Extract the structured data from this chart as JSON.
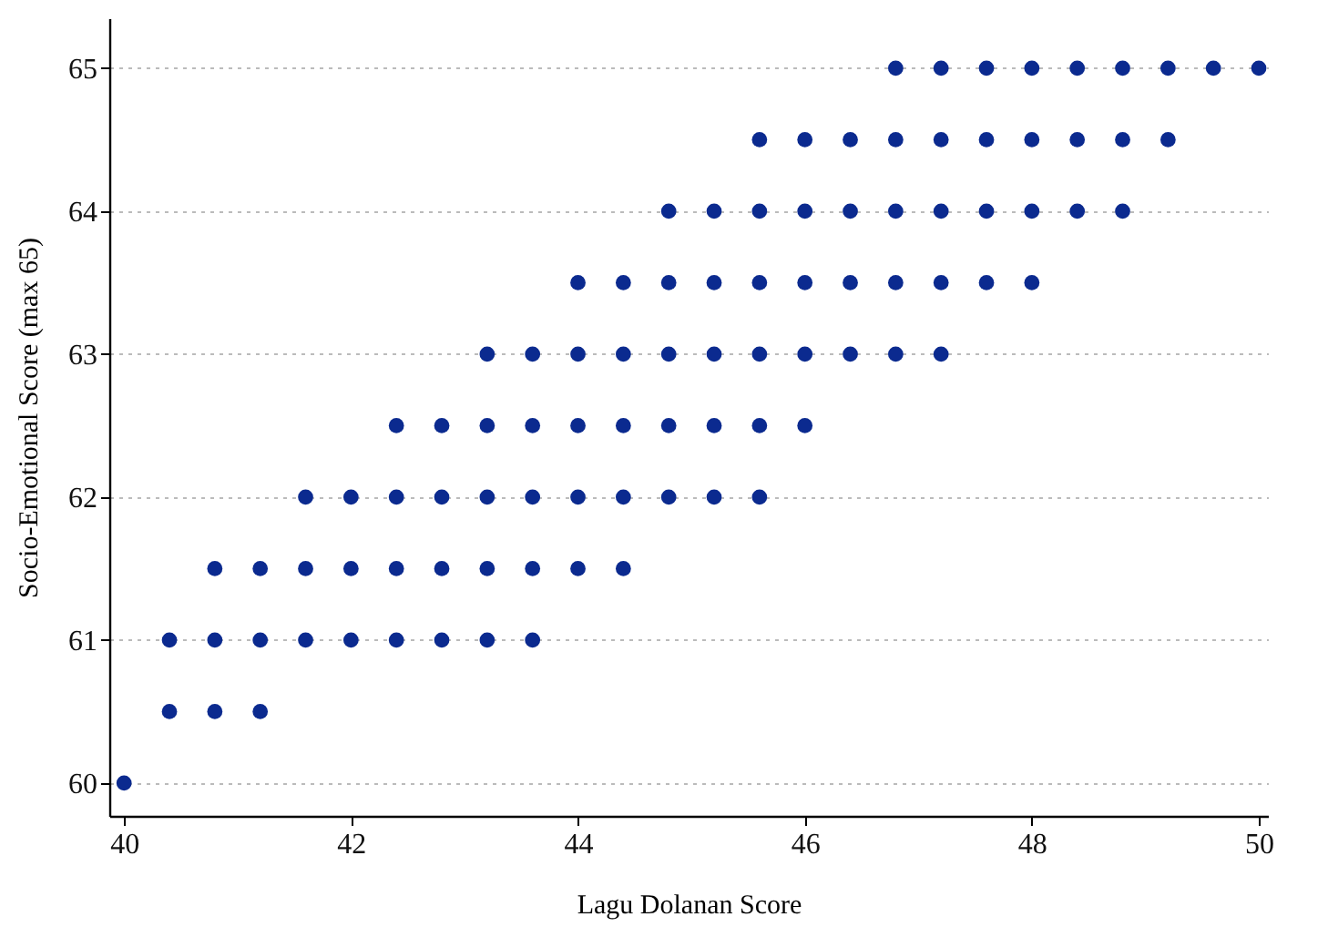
{
  "chart_data": {
    "type": "scatter",
    "xlabel": "Lagu Dolanan Score",
    "ylabel": "Socio-Emotional Score (max 65)",
    "series": [
      {
        "color": "#0b2a8f",
        "x": [
          40,
          40.4,
          40.8,
          41.2,
          40.4,
          40.8,
          41.2,
          41.6,
          42,
          42.4,
          42.8,
          43.2,
          43.6,
          40.8,
          41.2,
          41.6,
          42,
          42.4,
          42.8,
          43.2,
          43.6,
          44,
          44.4,
          41.6,
          42,
          42.4,
          42.8,
          43.2,
          43.6,
          44,
          44.4,
          44.8,
          45.2,
          45.6,
          42.4,
          42.8,
          43.2,
          43.6,
          44,
          44.4,
          44.8,
          45.2,
          45.6,
          46,
          43.2,
          43.6,
          44,
          44.4,
          44.8,
          45.2,
          45.6,
          46,
          46.4,
          46.8,
          47.2,
          44,
          44.4,
          44.8,
          45.2,
          45.6,
          46,
          46.4,
          46.8,
          47.2,
          47.6,
          48,
          44.8,
          45.2,
          45.6,
          46,
          46.4,
          46.8,
          47.2,
          47.6,
          48,
          48.4,
          48.8,
          45.6,
          46,
          46.4,
          46.8,
          47.2,
          47.6,
          48,
          48.4,
          48.8,
          49.2,
          46.8,
          47.2,
          47.6,
          48,
          48.4,
          48.8,
          49.2,
          49.6,
          50
        ],
        "values": [
          60,
          60.5,
          60.5,
          60.5,
          61,
          61,
          61,
          61,
          61,
          61,
          61,
          61,
          61,
          61.5,
          61.5,
          61.5,
          61.5,
          61.5,
          61.5,
          61.5,
          61.5,
          61.5,
          61.5,
          62,
          62,
          62,
          62,
          62,
          62,
          62,
          62,
          62,
          62,
          62,
          62.5,
          62.5,
          62.5,
          62.5,
          62.5,
          62.5,
          62.5,
          62.5,
          62.5,
          62.5,
          63,
          63,
          63,
          63,
          63,
          63,
          63,
          63,
          63,
          63,
          63,
          63.5,
          63.5,
          63.5,
          63.5,
          63.5,
          63.5,
          63.5,
          63.5,
          63.5,
          63.5,
          63.5,
          64,
          64,
          64,
          64,
          64,
          64,
          64,
          64,
          64,
          64,
          64,
          64.5,
          64.5,
          64.5,
          64.5,
          64.5,
          64.5,
          64.5,
          64.5,
          64.5,
          64.5,
          65,
          65,
          65,
          65,
          65,
          65,
          65,
          65,
          65
        ]
      }
    ],
    "xlim": [
      39.87,
      50.08
    ],
    "ylim": [
      59.77,
      65.35
    ],
    "xticks": [
      40,
      42,
      44,
      46,
      48,
      50
    ],
    "yticks": [
      60,
      61,
      62,
      63,
      64,
      65
    ],
    "grid": "y",
    "marker": "circle",
    "legend": false
  }
}
